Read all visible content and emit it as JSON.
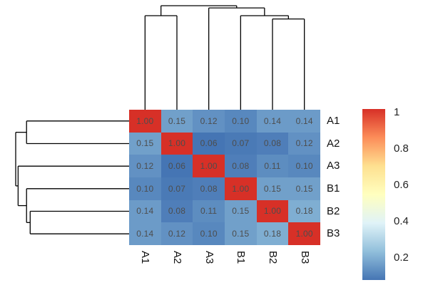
{
  "figure": {
    "background": "#ffffff",
    "title": ""
  },
  "chart_data": {
    "type": "heatmap",
    "variant": "clustered-correlation-heatmap-with-dendrograms",
    "title": "",
    "labels": [
      "A1",
      "A2",
      "A3",
      "B1",
      "B2",
      "B3"
    ],
    "row_labels": [
      "A1",
      "A2",
      "A3",
      "B1",
      "B2",
      "B3"
    ],
    "col_labels": [
      "A1",
      "A2",
      "A3",
      "B1",
      "B2",
      "B3"
    ],
    "matrix": [
      [
        1.0,
        0.15,
        0.12,
        0.1,
        0.14,
        0.14
      ],
      [
        0.15,
        1.0,
        0.06,
        0.07,
        0.08,
        0.12
      ],
      [
        0.12,
        0.06,
        1.0,
        0.08,
        0.11,
        0.1
      ],
      [
        0.1,
        0.07,
        0.08,
        1.0,
        0.15,
        0.15
      ],
      [
        0.14,
        0.08,
        0.11,
        0.15,
        1.0,
        0.18
      ],
      [
        0.14,
        0.12,
        0.1,
        0.15,
        0.18,
        1.0
      ]
    ],
    "cell_value_decimals": 2,
    "cell_text_color": "#4d4d4d",
    "color_domain": [
      0.06,
      1.0
    ],
    "colormap_stops": [
      "#4575b4",
      "#91bfdb",
      "#e0f3f8",
      "#ffffbf",
      "#fee090",
      "#fc8d59",
      "#d73027"
    ],
    "colorbar": {
      "position": "right",
      "tick_labels": [
        "1",
        "0.8",
        "0.6",
        "0.4",
        "0.2"
      ],
      "tick_values": [
        1,
        0.8,
        0.6,
        0.4,
        0.2
      ]
    },
    "grid": false,
    "dendrogram": {
      "applies_to": [
        "columns",
        "rows"
      ],
      "line_color": "#000000",
      "max_height": 0.94,
      "merges": [
        {
          "a": "L0",
          "b": "L1",
          "height": 0.85
        },
        {
          "a": "L4",
          "b": "L5",
          "height": 0.82
        },
        {
          "a": "L3",
          "b": "M1",
          "height": 0.85
        },
        {
          "a": "L2",
          "b": "M2",
          "height": 0.92
        },
        {
          "a": "M0",
          "b": "M3",
          "height": 0.94
        }
      ]
    }
  }
}
